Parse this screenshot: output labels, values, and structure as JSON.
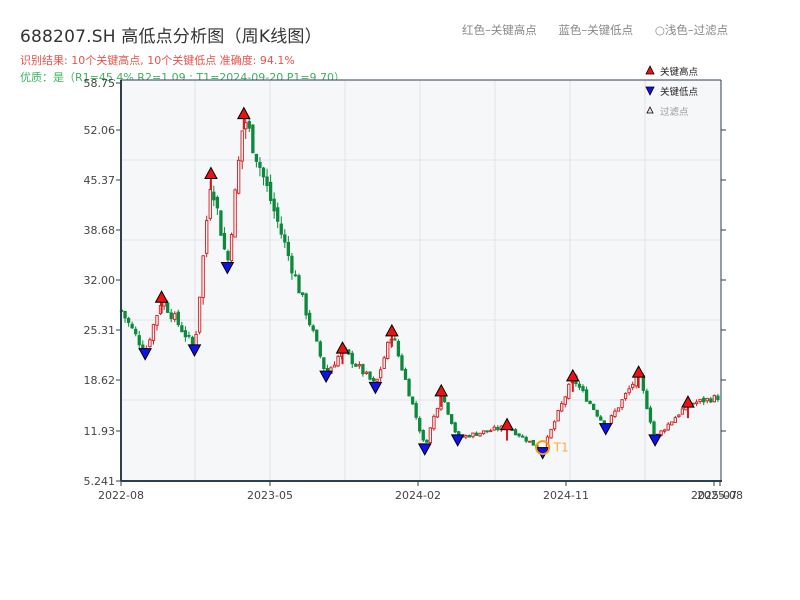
{
  "header": {
    "title": "688207.SH 高低点分析图（周K线图）",
    "result_line": "识别结果: 10个关键高点, 10个关键低点   准确度: 94.1%",
    "quality_line": "优质：是（R1=45.4%  R2=1.09 ; T1=2024-09-20 P1=9.70）"
  },
  "top_legend": {
    "items": [
      "红色–关键高点",
      "蓝色–关键低点",
      "○浅色–过滤点"
    ]
  },
  "colors": {
    "up": "#d7191c",
    "down": "#0a8a3a",
    "high_marker": "#ee1111",
    "low_marker": "#1111ee",
    "t1_circle": "#f39c12",
    "plot_bg": "#f6f7f9",
    "grid": "#e1e3e7",
    "axis": "#2c3e50"
  },
  "chart_data": {
    "type": "candlestick",
    "title": "688207.SH 高低点分析图（周K线图）",
    "xlabel": "",
    "ylabel": "",
    "ylim": [
      5.241,
      58.75
    ],
    "y_ticks": [
      "5.241",
      "11.93",
      "18.62",
      "25.31",
      "32.00",
      "38.68",
      "45.37",
      "52.06",
      "58.75"
    ],
    "x_ticks": [
      "2022-08",
      "2023-05",
      "2024-02",
      "2024-11",
      "2025-07",
      "2025-08"
    ],
    "grid": true,
    "legend": {
      "position": "upper right",
      "entries": [
        "关键高点",
        "关键低点",
        "过滤点"
      ]
    },
    "key_highs": [
      {
        "date": "2022-10",
        "price": 29.5
      },
      {
        "date": "2023-01",
        "price": 46.0
      },
      {
        "date": "2023-03",
        "price": 54.0
      },
      {
        "date": "2023-09",
        "price": 22.7
      },
      {
        "date": "2023-12",
        "price": 25.0
      },
      {
        "date": "2024-03",
        "price": 17.0
      },
      {
        "date": "2024-07",
        "price": 12.5
      },
      {
        "date": "2024-11",
        "price": 19.0
      },
      {
        "date": "2025-03",
        "price": 19.5
      },
      {
        "date": "2025-06",
        "price": 15.5
      }
    ],
    "key_lows": [
      {
        "date": "2022-09",
        "price": 22.5
      },
      {
        "date": "2022-12",
        "price": 23.0
      },
      {
        "date": "2023-02",
        "price": 34.0
      },
      {
        "date": "2023-08",
        "price": 19.5
      },
      {
        "date": "2023-11",
        "price": 18.0
      },
      {
        "date": "2024-02",
        "price": 9.8
      },
      {
        "date": "2024-04",
        "price": 11.0
      },
      {
        "date": "2024-09-20",
        "price": 9.3
      },
      {
        "date": "2025-01",
        "price": 12.5
      },
      {
        "date": "2025-04",
        "price": 11.0
      }
    ],
    "annotation": {
      "label": "T1",
      "date": "2024-09-20",
      "price": 9.7
    },
    "metrics": {
      "R1": "45.4%",
      "R2": "1.09",
      "T1": "2024-09-20",
      "P1": "9.70",
      "accuracy": "94.1%"
    }
  },
  "plot_legend": {
    "high_label": "关键高点",
    "low_label": "关键低点",
    "filtered_label": "过滤点"
  }
}
